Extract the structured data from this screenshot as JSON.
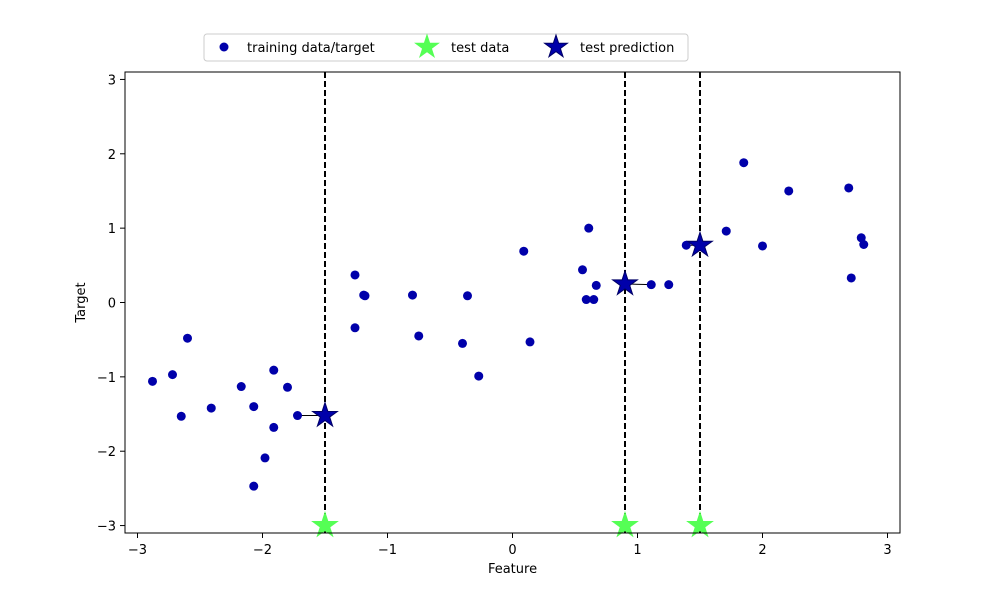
{
  "chart_data": {
    "type": "scatter",
    "xlabel": "Feature",
    "ylabel": "Target",
    "xlim": [
      -3.1,
      3.1
    ],
    "ylim": [
      -3.1,
      3.1
    ],
    "x_ticks": [
      -3,
      -2,
      -1,
      0,
      1,
      2,
      3
    ],
    "x_tick_labels": [
      "−3",
      "−2",
      "−1",
      "0",
      "1",
      "2",
      "3"
    ],
    "y_ticks": [
      -3,
      -2,
      -1,
      0,
      1,
      2,
      3
    ],
    "y_tick_labels": [
      "−3",
      "−2",
      "−1",
      "0",
      "1",
      "2",
      "3"
    ],
    "grid": false,
    "legend_position": "top-center",
    "colors": {
      "training": "#0000aa",
      "test_data": "#55ff55",
      "prediction": "#0000aa",
      "vline": "#000000"
    },
    "series": [
      {
        "name": "training data/target",
        "marker": "circle",
        "points": [
          [
            -2.88,
            -1.06
          ],
          [
            -2.72,
            -0.97
          ],
          [
            -2.65,
            -1.53
          ],
          [
            -2.6,
            -0.48
          ],
          [
            -2.41,
            -1.42
          ],
          [
            -2.17,
            -1.13
          ],
          [
            -2.07,
            -1.4
          ],
          [
            -2.07,
            -2.47
          ],
          [
            -1.98,
            -2.09
          ],
          [
            -1.91,
            -0.91
          ],
          [
            -1.91,
            -1.68
          ],
          [
            -1.8,
            -1.14
          ],
          [
            -1.72,
            -1.52
          ],
          [
            -1.26,
            0.37
          ],
          [
            -1.26,
            -0.34
          ],
          [
            -1.19,
            0.1
          ],
          [
            -1.18,
            0.09
          ],
          [
            -0.8,
            0.1
          ],
          [
            -0.75,
            -0.45
          ],
          [
            -0.4,
            -0.55
          ],
          [
            -0.36,
            0.09
          ],
          [
            -0.27,
            -0.99
          ],
          [
            0.09,
            0.69
          ],
          [
            0.14,
            -0.53
          ],
          [
            0.56,
            0.44
          ],
          [
            0.59,
            0.04
          ],
          [
            0.61,
            1.0
          ],
          [
            0.65,
            0.04
          ],
          [
            0.67,
            0.23
          ],
          [
            1.11,
            0.24
          ],
          [
            1.25,
            0.24
          ],
          [
            1.39,
            0.77
          ],
          [
            1.71,
            0.96
          ],
          [
            1.85,
            1.88
          ],
          [
            2.0,
            0.76
          ],
          [
            2.21,
            1.5
          ],
          [
            2.69,
            1.54
          ],
          [
            2.71,
            0.33
          ],
          [
            2.79,
            0.87
          ],
          [
            2.81,
            0.78
          ]
        ]
      },
      {
        "name": "test data",
        "marker": "star",
        "points": [
          [
            -1.5,
            -3.0
          ],
          [
            0.9,
            -3.0
          ],
          [
            1.5,
            -3.0
          ]
        ]
      },
      {
        "name": "test prediction",
        "marker": "star",
        "points": [
          [
            -1.5,
            -1.52
          ],
          [
            0.9,
            0.25
          ],
          [
            1.5,
            0.77
          ]
        ]
      }
    ],
    "neighbor_links": [
      [
        [
          -1.5,
          -1.52
        ],
        [
          -1.72,
          -1.52
        ]
      ],
      [
        [
          0.9,
          0.25
        ],
        [
          1.11,
          0.24
        ]
      ],
      [
        [
          1.5,
          0.77
        ],
        [
          1.39,
          0.77
        ]
      ]
    ],
    "vlines_x": [
      -1.5,
      0.9,
      1.5
    ]
  }
}
